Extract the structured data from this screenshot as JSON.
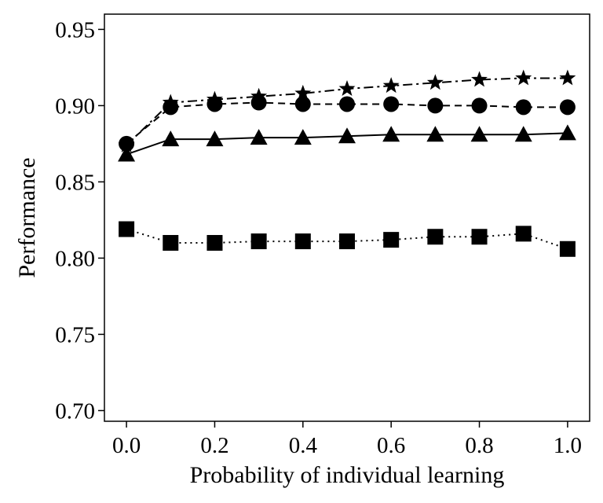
{
  "chart_data": {
    "type": "line",
    "title": "",
    "xlabel": "Probability of individual learning",
    "ylabel": "Performance",
    "xlim": [
      -0.05,
      1.05
    ],
    "ylim": [
      0.693,
      0.96
    ],
    "xticks": [
      0.0,
      0.2,
      0.4,
      0.6,
      0.8,
      1.0
    ],
    "xtick_labels": [
      "0.0",
      "0.2",
      "0.4",
      "0.6",
      "0.8",
      "1.0"
    ],
    "yticks": [
      0.7,
      0.75,
      0.8,
      0.85,
      0.9,
      0.95
    ],
    "ytick_labels": [
      "0.70",
      "0.75",
      "0.80",
      "0.85",
      "0.90",
      "0.95"
    ],
    "grid": false,
    "legend": "none",
    "x": [
      0.0,
      0.1,
      0.2,
      0.3,
      0.4,
      0.5,
      0.6,
      0.7,
      0.8,
      0.9,
      1.0
    ],
    "series": [
      {
        "marker": "star",
        "linestyle": "dashdot",
        "color": "#000000",
        "values": [
          0.874,
          0.902,
          0.904,
          0.906,
          0.908,
          0.911,
          0.913,
          0.915,
          0.917,
          0.918,
          0.918
        ]
      },
      {
        "marker": "circle",
        "linestyle": "dashed",
        "color": "#000000",
        "values": [
          0.875,
          0.899,
          0.901,
          0.902,
          0.901,
          0.901,
          0.901,
          0.9,
          0.9,
          0.899,
          0.899
        ]
      },
      {
        "marker": "triangle",
        "linestyle": "solid",
        "color": "#000000",
        "values": [
          0.868,
          0.878,
          0.878,
          0.879,
          0.879,
          0.88,
          0.881,
          0.881,
          0.881,
          0.881,
          0.882
        ]
      },
      {
        "marker": "square",
        "linestyle": "dotted",
        "color": "#000000",
        "values": [
          0.819,
          0.81,
          0.81,
          0.811,
          0.811,
          0.811,
          0.812,
          0.814,
          0.814,
          0.816,
          0.806
        ]
      }
    ]
  }
}
